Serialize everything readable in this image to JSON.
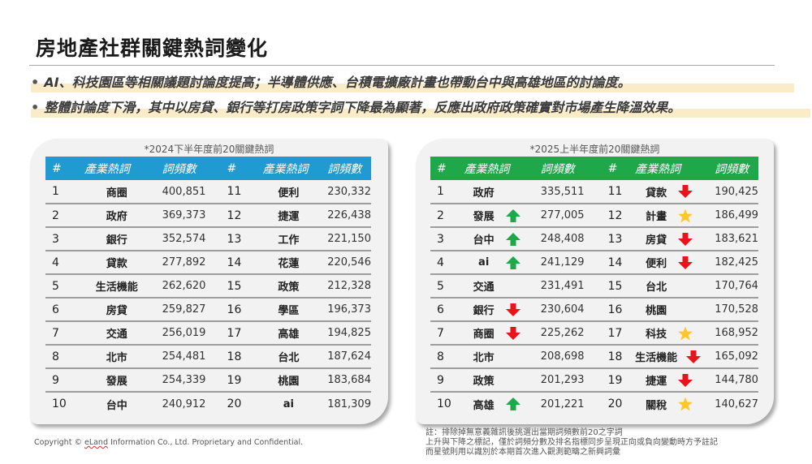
{
  "title": "房地產社群關鍵熱詞變化",
  "bullets": [
    "AI、科技園區等相關議題討論度提高；半導體供應、台積電擴廠計畫也帶動台中與高雄地區的討論度。",
    "整體討論度下滑，其中以房貸、銀行等打房政策字詞下降最為顯著，反應出政府政策確實對市場產生降溫效果。"
  ],
  "bullet_marker": "•",
  "colors": {
    "left_header": "#1f9bd1",
    "right_header": "#1fa84a",
    "up_arrow": "#1fa84a",
    "down_arrow": "#e8141b",
    "new_star": "#ffc629",
    "highlight": "#fbecc9"
  },
  "columns": [
    "#",
    "產業熱詞",
    "詞頻數",
    "#",
    "產業熱詞",
    "詞頻數"
  ],
  "left_table": {
    "caption": "*2024下半年度前20關鍵熱詞",
    "rows": [
      {
        "r1": "1",
        "k1": "商圈",
        "v1": "400,851",
        "r2": "11",
        "k2": "便利",
        "v2": "230,332"
      },
      {
        "r1": "2",
        "k1": "政府",
        "v1": "369,373",
        "r2": "12",
        "k2": "捷運",
        "v2": "226,438"
      },
      {
        "r1": "3",
        "k1": "銀行",
        "v1": "352,574",
        "r2": "13",
        "k2": "工作",
        "v2": "221,150"
      },
      {
        "r1": "4",
        "k1": "貸款",
        "v1": "277,892",
        "r2": "14",
        "k2": "花蓮",
        "v2": "220,546"
      },
      {
        "r1": "5",
        "k1": "生活機能",
        "v1": "262,620",
        "r2": "15",
        "k2": "政策",
        "v2": "212,328"
      },
      {
        "r1": "6",
        "k1": "房貸",
        "v1": "259,827",
        "r2": "16",
        "k2": "學區",
        "v2": "196,373"
      },
      {
        "r1": "7",
        "k1": "交通",
        "v1": "256,019",
        "r2": "17",
        "k2": "高雄",
        "v2": "194,825"
      },
      {
        "r1": "8",
        "k1": "北市",
        "v1": "254,481",
        "r2": "18",
        "k2": "台北",
        "v2": "187,624"
      },
      {
        "r1": "9",
        "k1": "發展",
        "v1": "254,339",
        "r2": "19",
        "k2": "桃園",
        "v2": "183,684"
      },
      {
        "r1": "10",
        "k1": "台中",
        "v1": "240,912",
        "r2": "20",
        "k2": "ai",
        "v2": "181,309"
      }
    ]
  },
  "right_table": {
    "caption": "*2025上半年度前20關鍵熱詞",
    "rows": [
      {
        "r1": "1",
        "k1": "政府",
        "m1": "",
        "v1": "335,511",
        "r2": "11",
        "k2": "貸款",
        "m2": "down",
        "v2": "190,425"
      },
      {
        "r1": "2",
        "k1": "發展",
        "m1": "up",
        "v1": "277,005",
        "r2": "12",
        "k2": "計畫",
        "m2": "new",
        "v2": "186,499"
      },
      {
        "r1": "3",
        "k1": "台中",
        "m1": "up",
        "v1": "248,408",
        "r2": "13",
        "k2": "房貸",
        "m2": "down",
        "v2": "183,621"
      },
      {
        "r1": "4",
        "k1": "ai",
        "m1": "up",
        "v1": "241,129",
        "r2": "14",
        "k2": "便利",
        "m2": "down",
        "v2": "182,425"
      },
      {
        "r1": "5",
        "k1": "交通",
        "m1": "",
        "v1": "231,491",
        "r2": "15",
        "k2": "台北",
        "m2": "",
        "v2": "170,764"
      },
      {
        "r1": "6",
        "k1": "銀行",
        "m1": "down",
        "v1": "230,604",
        "r2": "16",
        "k2": "桃園",
        "m2": "",
        "v2": "170,528"
      },
      {
        "r1": "7",
        "k1": "商圈",
        "m1": "down",
        "v1": "225,262",
        "r2": "17",
        "k2": "科技",
        "m2": "new",
        "v2": "168,952"
      },
      {
        "r1": "8",
        "k1": "北市",
        "m1": "",
        "v1": "208,698",
        "r2": "18",
        "k2": "生活機能",
        "m2": "down",
        "v2": "165,092"
      },
      {
        "r1": "9",
        "k1": "政策",
        "m1": "",
        "v1": "201,293",
        "r2": "19",
        "k2": "捷運",
        "m2": "down",
        "v2": "144,780"
      },
      {
        "r1": "10",
        "k1": "高雄",
        "m1": "up",
        "v1": "201,221",
        "r2": "20",
        "k2": "關稅",
        "m2": "new",
        "v2": "140,627"
      }
    ]
  },
  "marker_icons": {
    "up": "arrow-up-icon",
    "down": "arrow-down-icon",
    "new": "star-icon"
  },
  "notes": [
    "註：排除掉無意義雜訊後挑選出當期詞頻數前20之字詞",
    "上升與下降之標記，僅於詞頻分數及排名指標同步呈現正向或負向變動時方予註記",
    "而星號則用以識別於本期首次進入觀測範疇之新興詞彙"
  ],
  "copyright": {
    "prefix": "Copyright © ",
    "brand": "eLand",
    "suffix": " Information Co., Ltd. Proprietary and Confidential."
  }
}
